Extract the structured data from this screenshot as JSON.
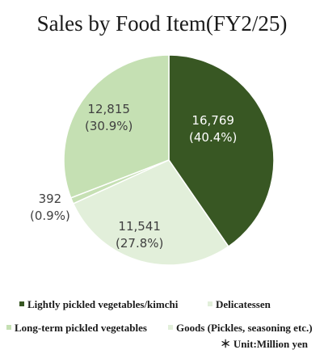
{
  "chart_data": {
    "type": "pie",
    "title": "Sales by Food Item(FY2/25)",
    "slices": [
      {
        "name": "Lightly pickled vegetables/kimchi",
        "value": 16769,
        "value_label": "16,769",
        "percent_label": "(40.4%)",
        "color": "#385723"
      },
      {
        "name": "Delicatessen",
        "value": 11541,
        "value_label": "11,541",
        "percent_label": "(27.8%)",
        "color": "#e2efda"
      },
      {
        "name": "Goods (Pickles, seasoning etc.)",
        "value": 392,
        "value_label": "392",
        "percent_label": "(0.9%)",
        "color": "#c6e0b4"
      },
      {
        "name": "Long-term pickled vegetables",
        "value": 12815,
        "value_label": "12,815",
        "percent_label": "(30.9%)",
        "color": "#c5e0b3"
      }
    ],
    "note": "＊ Unit:Million yen"
  }
}
